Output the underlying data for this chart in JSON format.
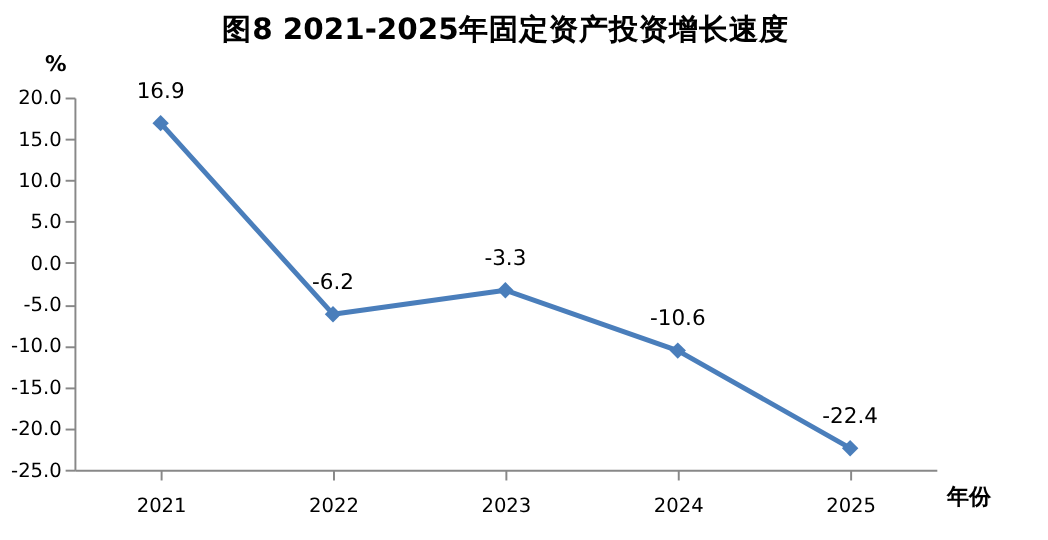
{
  "chart_data": {
    "type": "line",
    "title": "图8  2021-2025年固定资产投资增长速度",
    "ylabel": "%",
    "xlabel": "年份",
    "categories": [
      "2021",
      "2022",
      "2023",
      "2024",
      "2025"
    ],
    "series": [
      {
        "color": "#4a7ebb",
        "values": [
          16.9,
          -6.2,
          -3.3,
          -10.6,
          -22.4
        ]
      }
    ],
    "ylim": [
      -25,
      20
    ],
    "yticks": [
      {
        "value": -25,
        "label": "-25.0"
      },
      {
        "value": -20,
        "label": "-20.0"
      },
      {
        "value": -15,
        "label": "-15.0"
      },
      {
        "value": -10,
        "label": "-10.0"
      },
      {
        "value": -5,
        "label": "-5.0"
      },
      {
        "value": 0,
        "label": "0.0"
      },
      {
        "value": 5,
        "label": "5.0"
      },
      {
        "value": 10,
        "label": "10.0"
      },
      {
        "value": 15,
        "label": "15.0"
      },
      {
        "value": 20,
        "label": "20.0"
      }
    ],
    "data_labels": true,
    "marker": "diamond",
    "line_style": "solid",
    "grid": false
  }
}
